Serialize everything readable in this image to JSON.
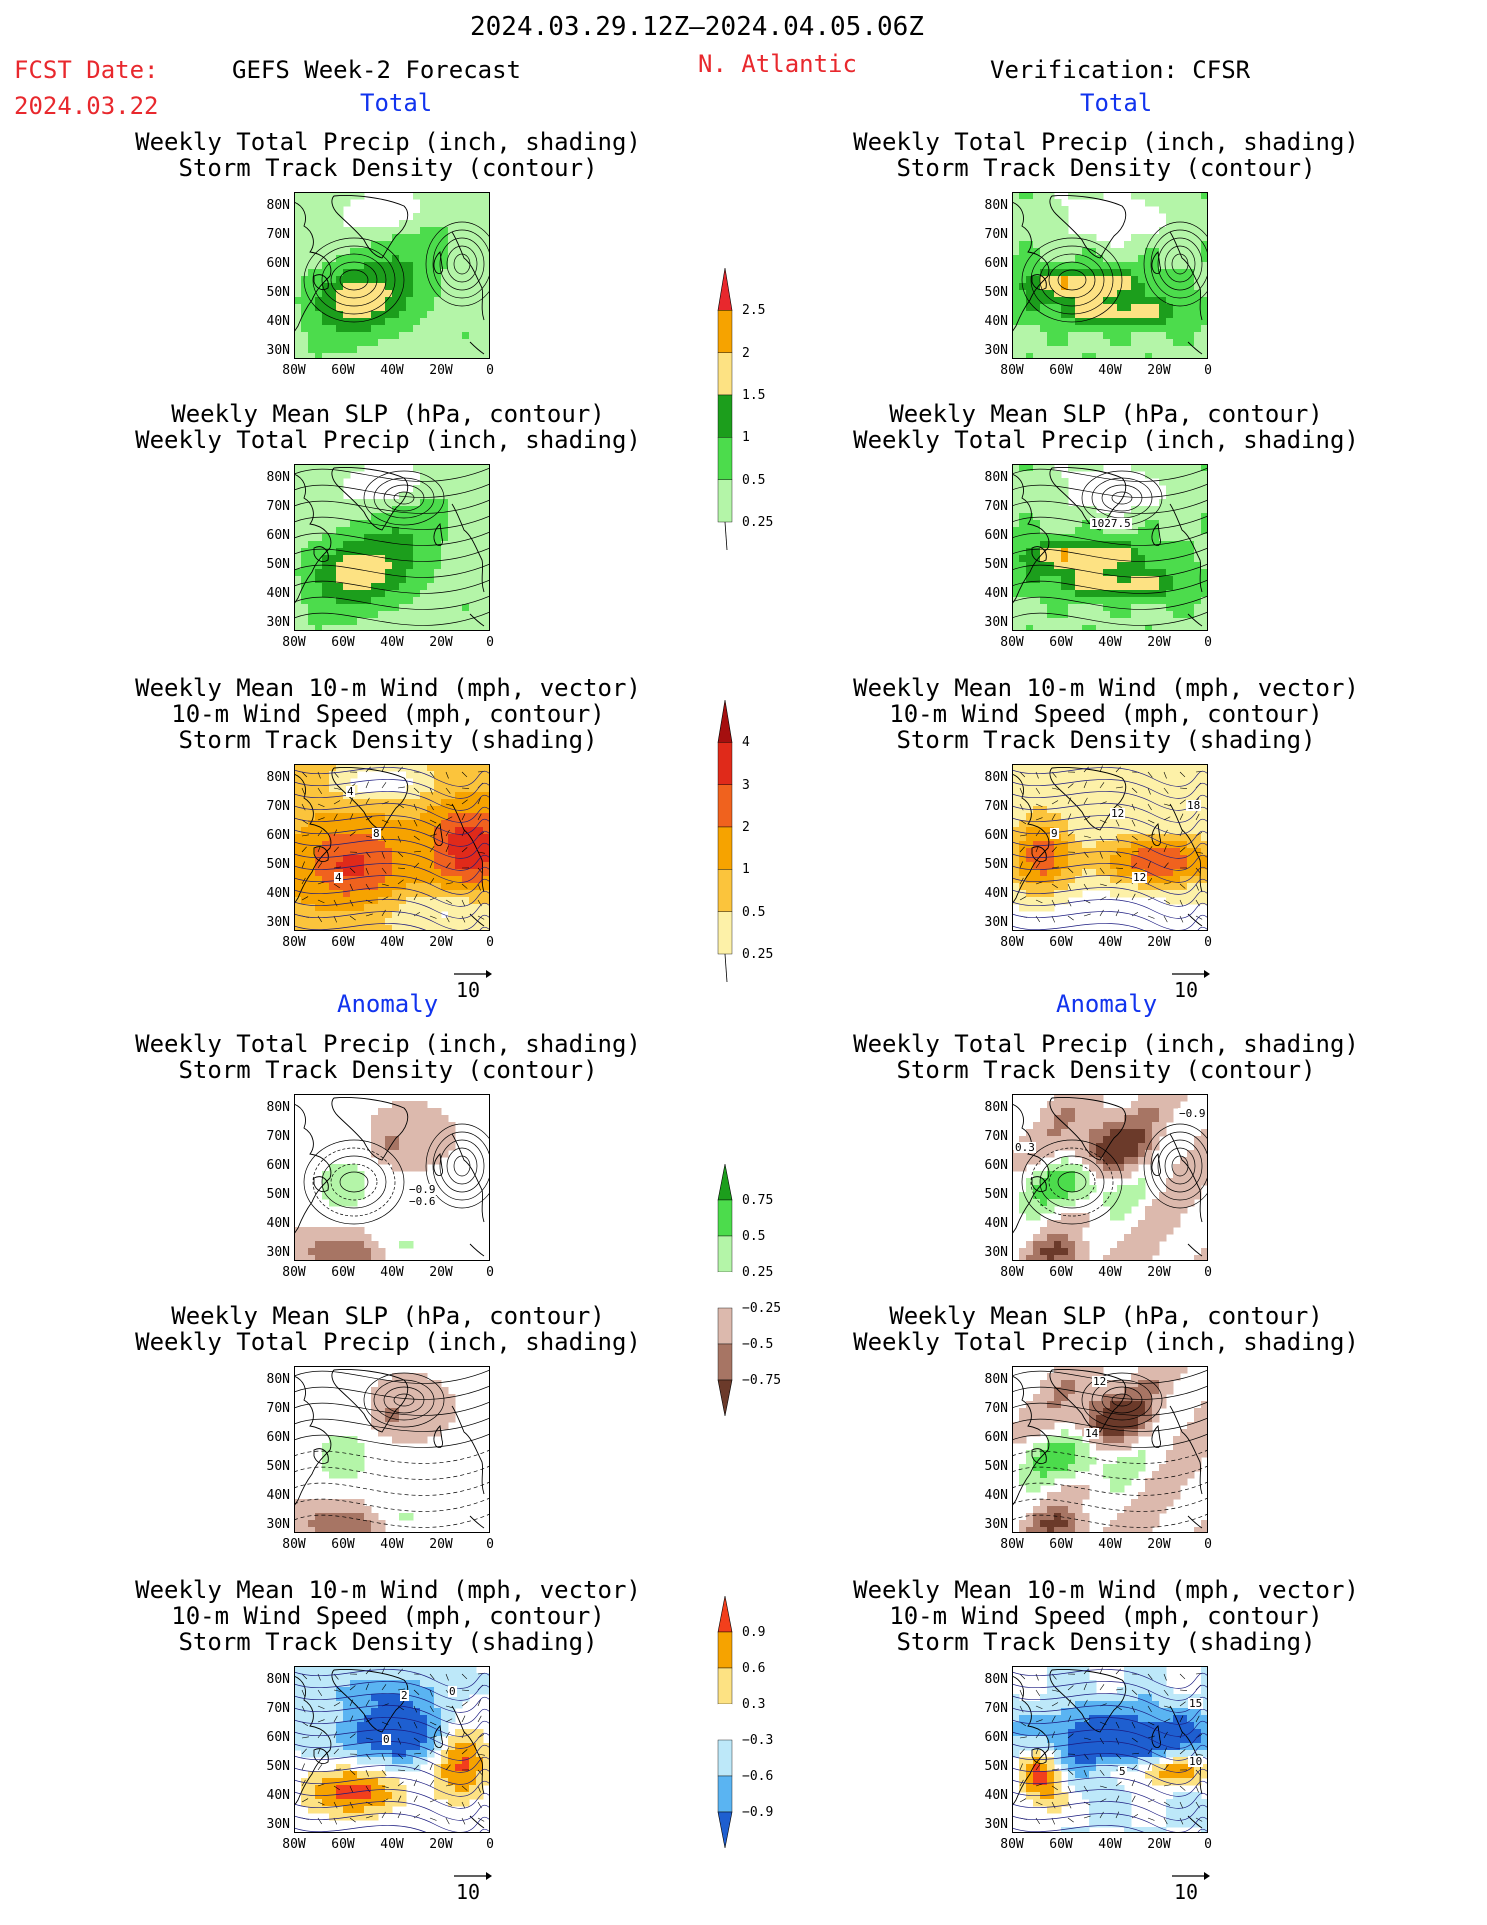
{
  "header": {
    "date_range": "2024.03.29.12Z–2024.04.05.06Z",
    "fcst_label": "FCST Date:",
    "fcst_date": "2024.03.22",
    "left_title": "GEFS Week-2 Forecast",
    "region": "N. Atlantic",
    "right_title": "Verification: CFSR"
  },
  "sections": {
    "total": "Total",
    "anomaly": "Anomaly"
  },
  "panels": [
    {
      "id": "fc-precip-track",
      "l1": "Weekly Total Precip (inch, shading)",
      "l2": "Storm Track Density (contour)",
      "l3": ""
    },
    {
      "id": "fc-slp-precip",
      "l1": "Weekly Mean SLP (hPa, contour)",
      "l2": "Weekly Total Precip (inch, shading)",
      "l3": ""
    },
    {
      "id": "fc-wind-track",
      "l1": "Weekly Mean 10-m Wind (mph, vector)",
      "l2": "10-m Wind Speed (mph, contour)",
      "l3": "Storm Track Density (shading)"
    },
    {
      "id": "fc-anom-precip-track",
      "l1": "Weekly Total Precip (inch, shading)",
      "l2": "Storm Track Density (contour)",
      "l3": ""
    },
    {
      "id": "fc-anom-slp-precip",
      "l1": "Weekly Mean SLP (hPa, contour)",
      "l2": "Weekly Total Precip (inch, shading)",
      "l3": ""
    },
    {
      "id": "fc-anom-wind-track",
      "l1": "Weekly Mean 10-m Wind (mph, vector)",
      "l2": "10-m Wind Speed (mph, contour)",
      "l3": "Storm Track Density (shading)"
    }
  ],
  "axes": {
    "lat_labels": [
      "80N",
      "70N",
      "60N",
      "50N",
      "40N",
      "30N"
    ],
    "lon_labels": [
      "80W",
      "60W",
      "40W",
      "20W",
      "0"
    ]
  },
  "colorbars": {
    "precip_total": {
      "labels": [
        "2.5",
        "2",
        "1.5",
        "1",
        "0.5",
        "0.25"
      ],
      "colors": [
        "#e8282d",
        "#f6a300",
        "#fde283",
        "#1c9e1c",
        "#4cdc4c",
        "#b4f5a8"
      ]
    },
    "track_total": {
      "labels": [
        "4",
        "3",
        "2",
        "1",
        "0.5",
        "0.25"
      ],
      "colors": [
        "#a50f0f",
        "#e02a1a",
        "#f0621e",
        "#f6a300",
        "#fbc43c",
        "#fdf1a8"
      ]
    },
    "precip_anom": {
      "labels": [
        "0.75",
        "0.5",
        "0.25",
        "−0.25",
        "−0.5",
        "−0.75"
      ],
      "colors": [
        "#1c9e1c",
        "#4cdc4c",
        "#b4f5a8",
        "#ffffff",
        "#dcb9ad",
        "#a77564",
        "#6b3a2a"
      ]
    },
    "track_anom": {
      "labels": [
        "0.9",
        "0.6",
        "0.3",
        "−0.3",
        "−0.6",
        "−0.9"
      ],
      "colors": [
        "#f23f1c",
        "#f6a300",
        "#fde283",
        "#ffffff",
        "#bde8f9",
        "#5ab4f2",
        "#1e5fd0"
      ]
    }
  },
  "vector_ref": "10",
  "contour_labels": {
    "fc_wind": [
      "4",
      "8",
      "4"
    ],
    "ver_slp": [
      "1027.5"
    ],
    "ver_wind": [
      "9",
      "12",
      "12",
      "18"
    ],
    "fc_anom_track": [
      "−0.9",
      "−0.6"
    ],
    "ver_anom_track": [
      "0.3",
      "−0.9"
    ],
    "ver_anom_slp": [
      "12",
      "14"
    ],
    "fc_anom_wind": [
      "2",
      "0",
      "0"
    ],
    "ver_anom_wind": [
      "15",
      "10",
      "5"
    ]
  }
}
